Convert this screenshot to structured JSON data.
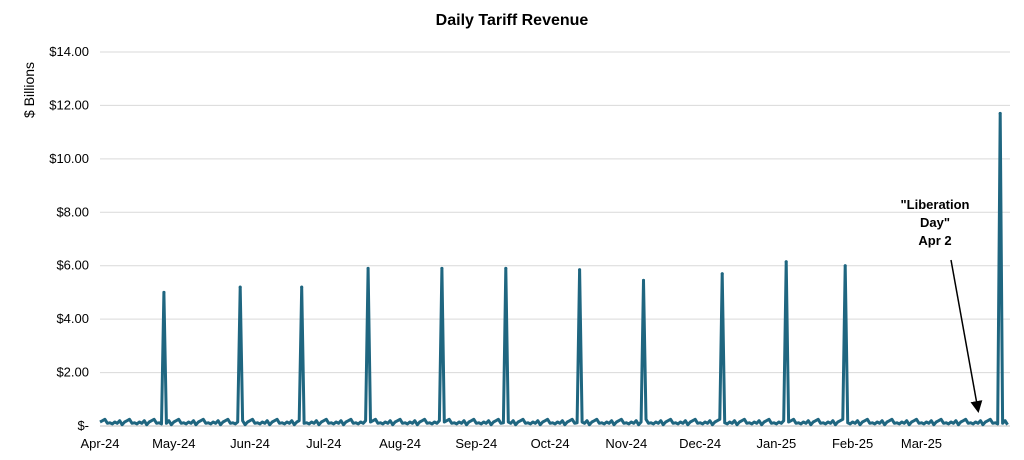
{
  "chart_data": {
    "type": "line",
    "title": "Daily Tariff Revenue",
    "ylabel": "$ Billions",
    "xlabel": "",
    "ylim": [
      0,
      14
    ],
    "grid": true,
    "color": "#1f6680",
    "y_tick_labels": [
      "$-",
      "$2.00",
      "$4.00",
      "$6.00",
      "$8.00",
      "$10.00",
      "$12.00",
      "$14.00"
    ],
    "y_tick_values": [
      0,
      2,
      4,
      6,
      8,
      10,
      12,
      14
    ],
    "x_tick_labels": [
      "Apr-24",
      "May-24",
      "Jun-24",
      "Jul-24",
      "Aug-24",
      "Sep-24",
      "Oct-24",
      "Nov-24",
      "Dec-24",
      "Jan-25",
      "Feb-25",
      "Mar-25"
    ],
    "x_tick_days": [
      0,
      30,
      61,
      91,
      122,
      153,
      183,
      214,
      244,
      275,
      306,
      334
    ],
    "x_range_days": [
      0,
      370
    ],
    "baseline": [
      0.15,
      0.2,
      0.25,
      0.1,
      0.12,
      0.08,
      0.15,
      0.1,
      0.2,
      0.05
    ],
    "spikes": [
      {
        "day": 26,
        "value": 5.0
      },
      {
        "day": 57,
        "value": 5.2
      },
      {
        "day": 82,
        "value": 5.2
      },
      {
        "day": 109,
        "value": 5.9
      },
      {
        "day": 139,
        "value": 5.9
      },
      {
        "day": 165,
        "value": 5.9
      },
      {
        "day": 195,
        "value": 5.85
      },
      {
        "day": 221,
        "value": 5.45
      },
      {
        "day": 253,
        "value": 5.7
      },
      {
        "day": 279,
        "value": 6.15
      },
      {
        "day": 303,
        "value": 6.0
      },
      {
        "day": 366,
        "value": 11.7
      }
    ],
    "annotation": {
      "lines": [
        "\"Liberation",
        "Day\"",
        "Apr 2"
      ],
      "target_day": 357,
      "target_value": 0.3
    }
  }
}
